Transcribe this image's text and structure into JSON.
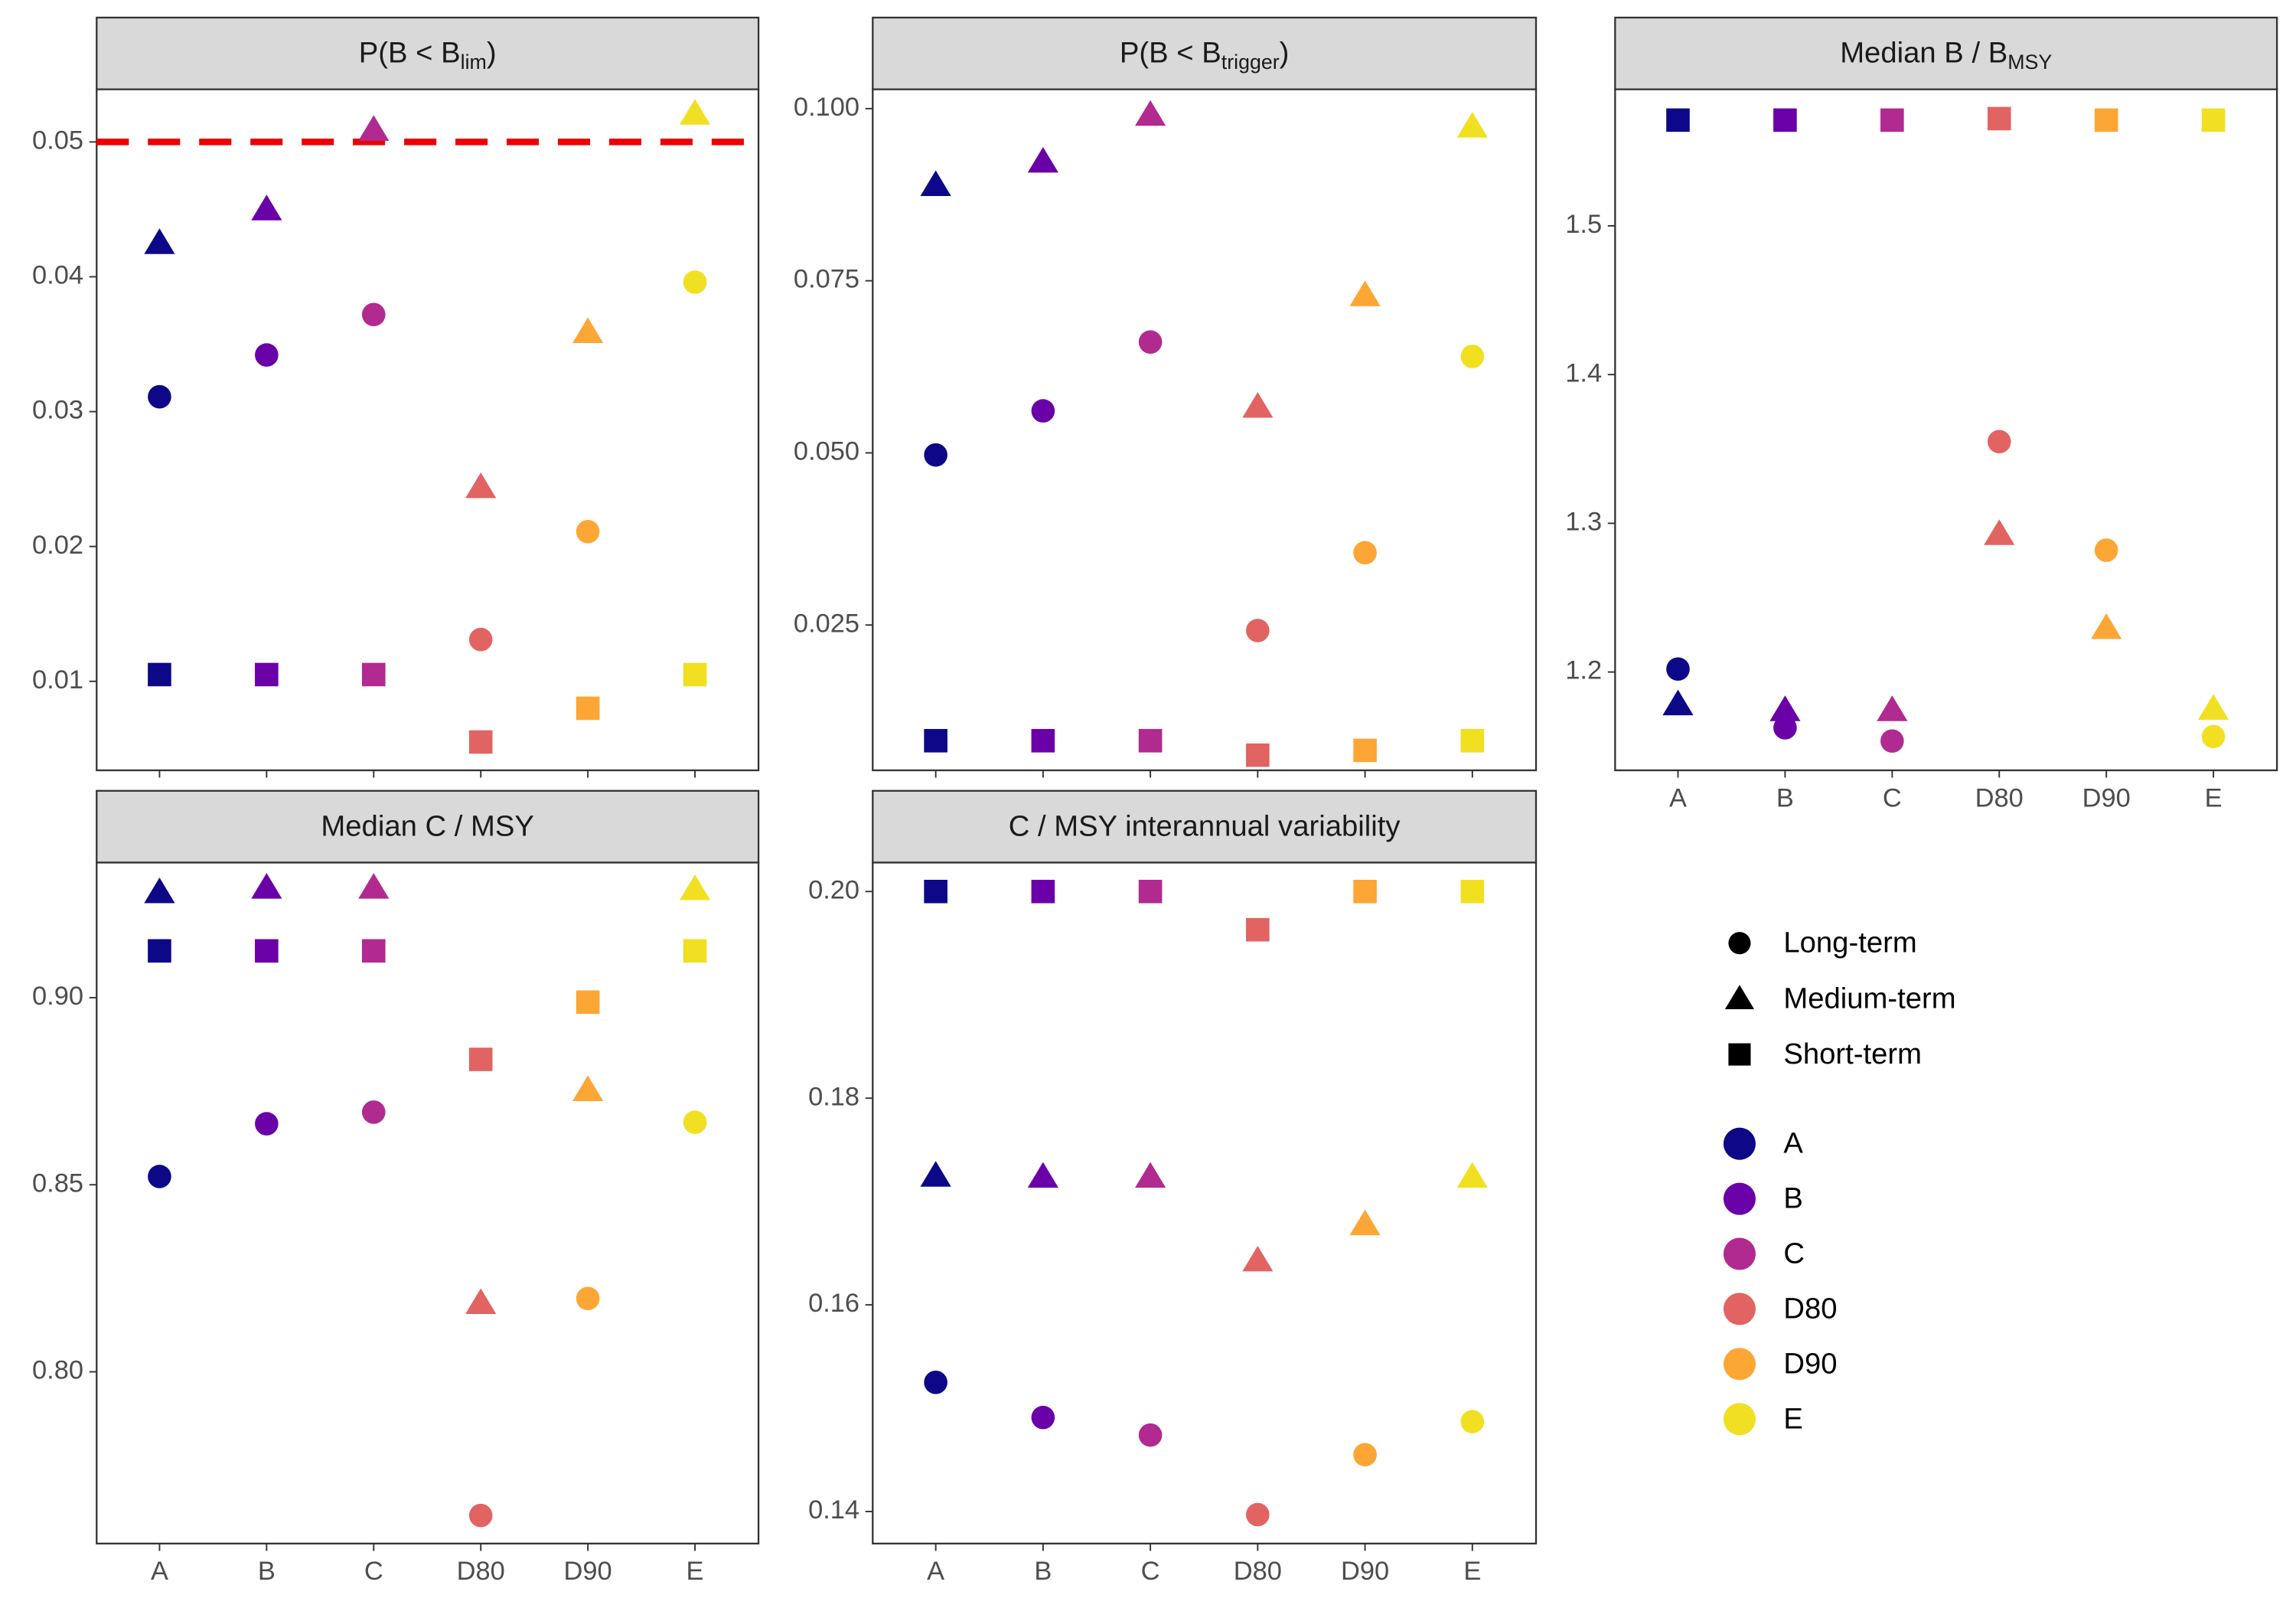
{
  "chart_data": {
    "type": "scatter",
    "categories": [
      "A",
      "B",
      "C",
      "D80",
      "D90",
      "E"
    ],
    "colors": [
      "#0d0887",
      "#6a00a8",
      "#b12a90",
      "#e16462",
      "#fca636",
      "#f0e021"
    ],
    "series": [
      {
        "name": "Long-term",
        "shape": "circle"
      },
      {
        "name": "Medium-term",
        "shape": "triangle"
      },
      {
        "name": "Short-term",
        "shape": "square"
      }
    ],
    "grid": false,
    "legend_position": "right",
    "panels": [
      {
        "title": {
          "text": "P(B < B",
          "sub": "lim",
          "after": ")"
        },
        "ylim": [
          0.0034,
          0.0539
        ],
        "yticks": [
          0.01,
          0.02,
          0.03,
          0.04,
          0.05
        ],
        "hline": 0.05,
        "hline_color": "#ee0000",
        "show_x_labels": false,
        "values": [
          [
            0.0311,
            0.0342,
            0.0372,
            0.0131,
            0.0211,
            0.0396
          ],
          [
            0.0425,
            0.045,
            0.0509,
            0.0244,
            0.0359,
            0.0521
          ],
          [
            0.0105,
            0.0105,
            0.0105,
            0.0055,
            0.008,
            0.0105
          ]
        ]
      },
      {
        "title": {
          "text": "P(B < B",
          "sub": "trigger",
          "after": ")"
        },
        "ylim": [
          0.0039,
          0.1028
        ],
        "yticks": [
          0.025,
          {
            "value": 0.05,
            "label": "0.050"
          },
          0.075,
          {
            "value": 0.1,
            "label": "0.100"
          }
        ],
        "show_x_labels": false,
        "values": [
          [
            0.0497,
            0.0561,
            0.0661,
            0.0242,
            0.0355,
            0.064
          ],
          [
            0.0889,
            0.0923,
            0.0991,
            0.0567,
            0.0729,
            0.0974
          ],
          [
            0.0082,
            0.0082,
            0.0082,
            0.0061,
            0.0068,
            0.0082
          ]
        ]
      },
      {
        "title": {
          "text": "Median B / B",
          "sub": "MSY"
        },
        "ylim": [
          1.1339,
          1.5918
        ],
        "yticks": [
          1.2,
          1.3,
          1.4,
          1.5
        ],
        "show_x_labels": true,
        "values": [
          [
            1.202,
            1.1625,
            1.1536,
            1.3549,
            1.2819,
            1.1566
          ],
          [
            1.1783,
            1.1744,
            1.1744,
            1.2928,
            1.2296,
            1.1753
          ],
          [
            1.5711,
            1.5711,
            1.5711,
            1.5721,
            1.5711,
            1.5711
          ]
        ]
      },
      {
        "title": {
          "text": "Median C / MSY"
        },
        "ylim": [
          0.7541,
          0.9361
        ],
        "yticks": [
          {
            "value": 0.8,
            "label": "0.80"
          },
          0.85,
          {
            "value": 0.9,
            "label": "0.90"
          }
        ],
        "show_x_labels": true,
        "values": [
          [
            0.8522,
            0.8663,
            0.8694,
            0.7616,
            0.8196,
            0.8667
          ],
          [
            0.9282,
            0.9294,
            0.9294,
            0.8184,
            0.8753,
            0.929
          ],
          [
            0.9125,
            0.9125,
            0.9125,
            0.8835,
            0.8988,
            0.9125
          ]
        ]
      },
      {
        "title": {
          "text": "C / MSY interannual variability"
        },
        "ylim": [
          0.1369,
          0.2028
        ],
        "yticks": [
          0.14,
          0.16,
          0.18,
          {
            "value": 0.2,
            "label": "0.20"
          }
        ],
        "show_x_labels": true,
        "values": [
          [
            0.1525,
            0.1491,
            0.1474,
            0.1397,
            0.1455,
            0.1487
          ],
          [
            0.1725,
            0.1724,
            0.1724,
            0.1643,
            0.1678,
            0.1724
          ],
          [
            0.2,
            0.2,
            0.2,
            0.1963,
            0.2,
            0.2
          ]
        ]
      }
    ]
  }
}
